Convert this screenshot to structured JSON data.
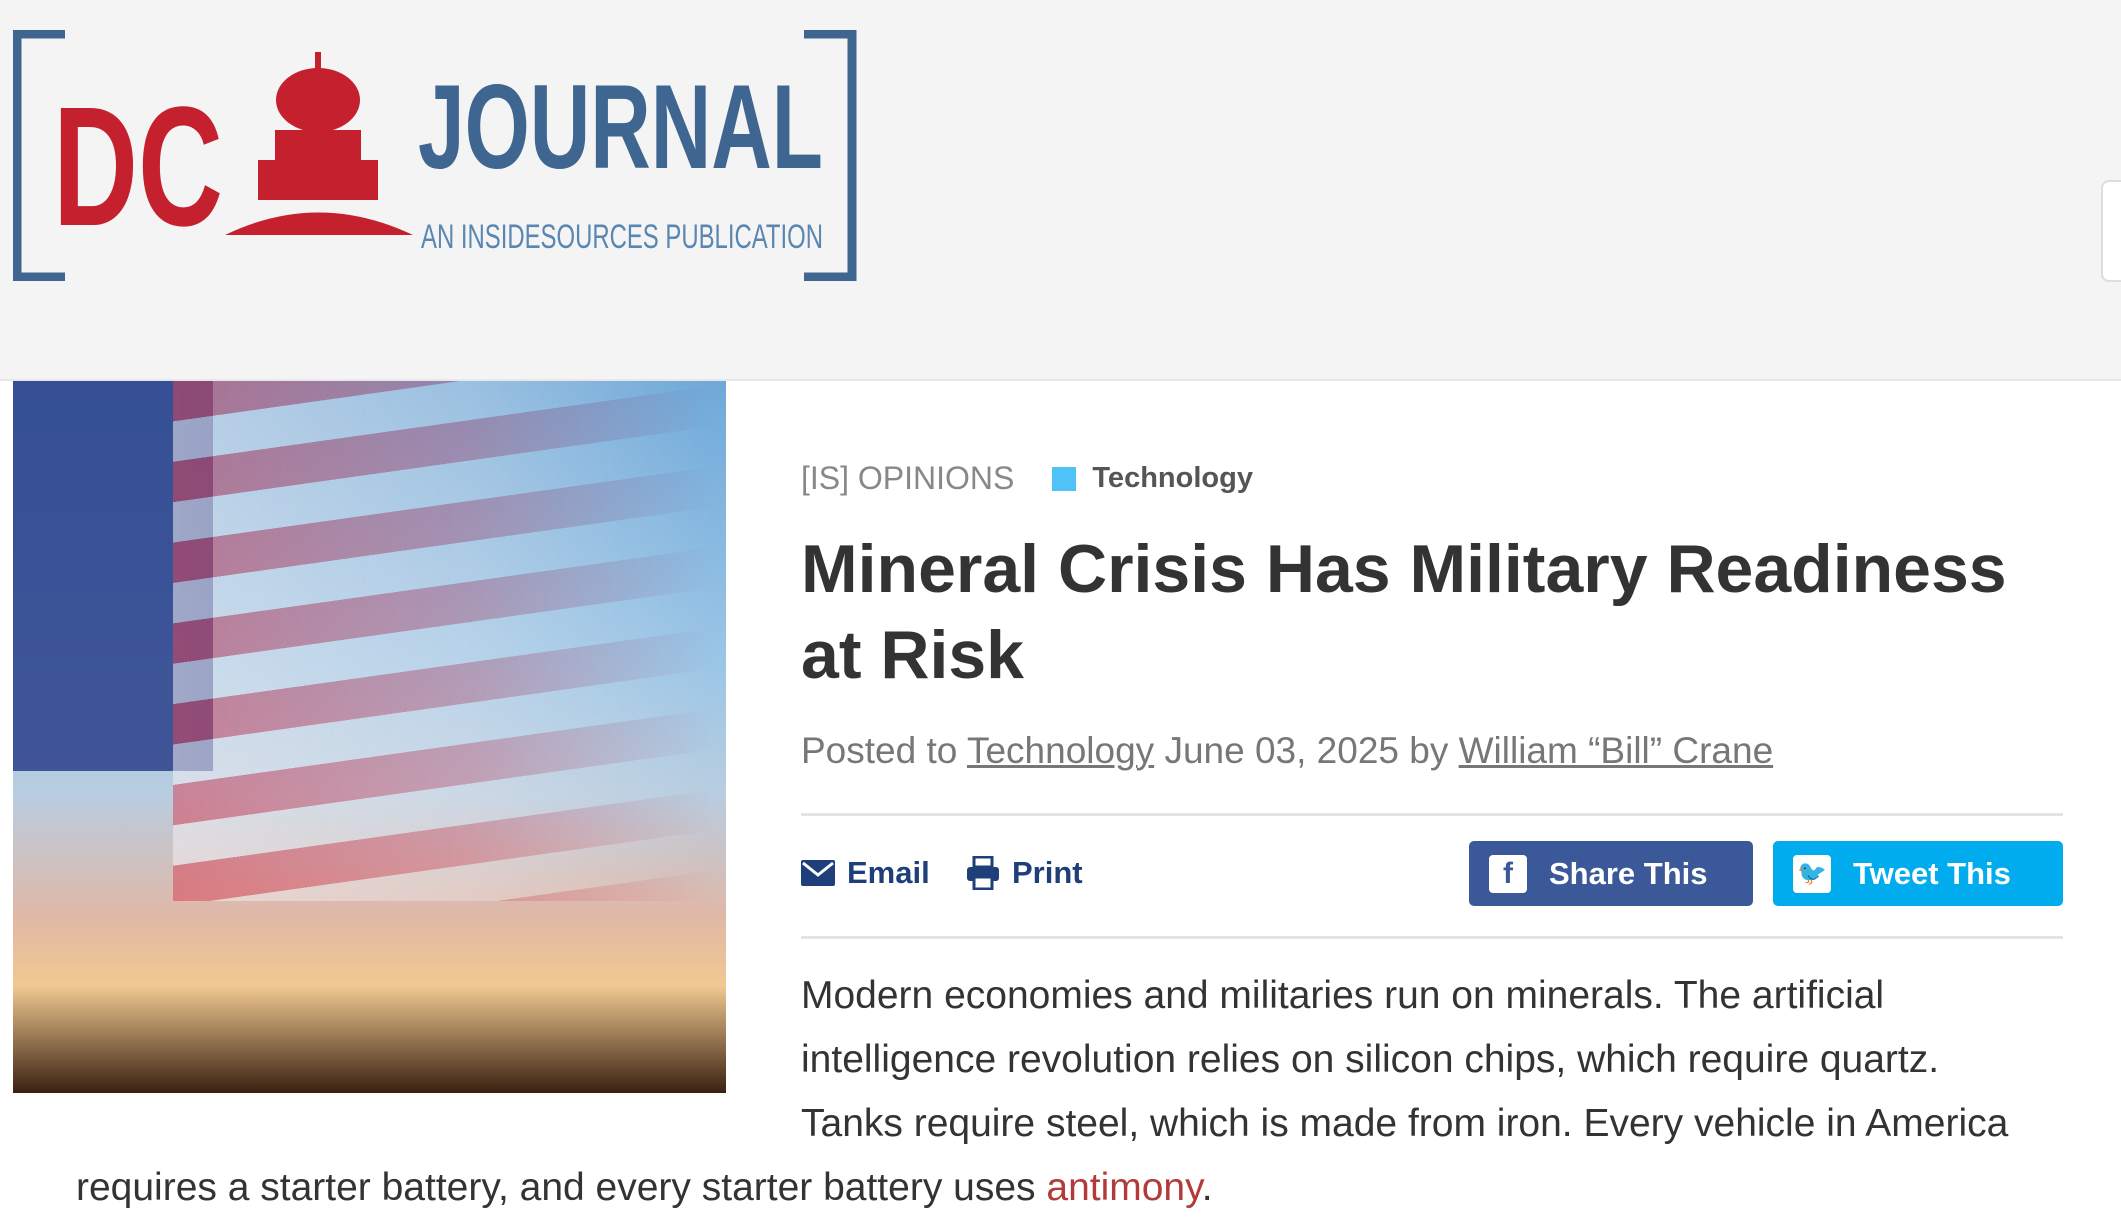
{
  "logo": {
    "text_dc": "DC",
    "text_journal": "JOURNAL",
    "tagline": "AN INSIDESOURCES PUBLICATION",
    "colors": {
      "red": "#c5202e",
      "blue": "#3f6690"
    }
  },
  "article": {
    "section": "[IS] OPINIONS",
    "category": "Technology",
    "category_color": "#4fc3f7",
    "title": "Mineral Crisis Has Military Readiness at Risk",
    "byline": {
      "prefix": "Posted to",
      "category_link": "Technology",
      "date": "June 03, 2025",
      "by": "by",
      "author": "William “Bill” Crane"
    },
    "actions": {
      "email": "Email",
      "print": "Print",
      "share": "Share This",
      "tweet": "Tweet This"
    },
    "colors": {
      "facebook": "#3b5998",
      "twitter": "#00aced"
    },
    "body": {
      "lines": [
        "Modern economies and militaries run on minerals. The artificial",
        "intelligence revolution relies on silicon chips, which require quartz.",
        "Tanks require steel, which is made from iron. Every vehicle in America"
      ],
      "last_prefix": "requires a starter battery, and every starter battery uses ",
      "link": "antimony",
      "last_suffix": "."
    }
  }
}
